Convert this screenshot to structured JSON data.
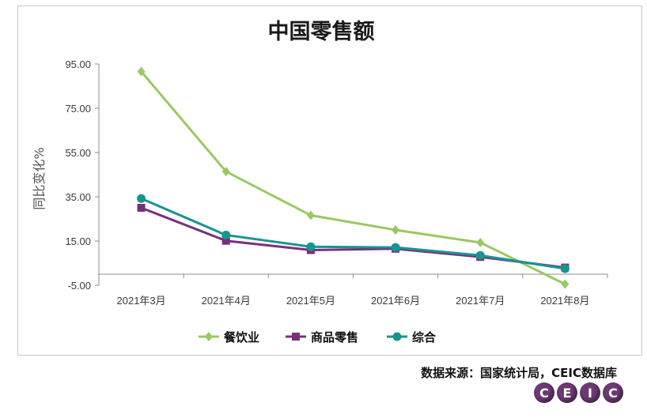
{
  "chart_data": {
    "type": "line",
    "title": "中国零售额",
    "ylabel": "同比变化%",
    "xlabel": "",
    "categories": [
      "2021年3月",
      "2021年4月",
      "2021年5月",
      "2021年6月",
      "2021年7月",
      "2021年8月"
    ],
    "yticks": [
      "95.00",
      "75.00",
      "55.00",
      "35.00",
      "15.00",
      "-5.00"
    ],
    "ylim": [
      -5,
      95
    ],
    "grid": false,
    "legend_position": "bottom",
    "series": [
      {
        "name": "餐饮业",
        "color": "#9bc863",
        "marker": "diamond",
        "values": [
          91.6,
          46.4,
          26.6,
          20.0,
          14.3,
          -4.5
        ]
      },
      {
        "name": "商品零售",
        "color": "#7b2e7e",
        "marker": "square",
        "values": [
          30.0,
          15.1,
          10.9,
          11.5,
          7.8,
          3.0
        ]
      },
      {
        "name": "综合",
        "color": "#17958f",
        "marker": "circle",
        "values": [
          34.2,
          17.7,
          12.4,
          12.1,
          8.5,
          2.5
        ]
      }
    ]
  },
  "source": "数据来源：国家统计局，CEIC数据库",
  "logo": {
    "letters": [
      "C",
      "E",
      "I",
      "C"
    ]
  }
}
